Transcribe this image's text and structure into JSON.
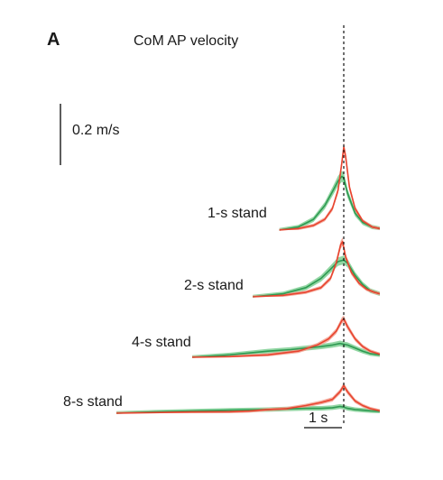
{
  "chart_data": {
    "type": "line",
    "panel_label": "A",
    "title": "CoM AP velocity",
    "units": "m/s",
    "scale_bars": {
      "velocity_label": "0.2 m/s",
      "velocity": 0.2,
      "time_label": "1 s",
      "time": 1
    },
    "colors": {
      "red": "#e8442f",
      "red_band": "#f2a08f",
      "green": "#2e9a52",
      "green_band": "#7fcf93"
    },
    "x_units": "s, relative to vertical dashed reference line",
    "conditions": [
      {
        "label": "1-s stand",
        "red": {
          "x": [
            -1.7,
            -1.2,
            -0.8,
            -0.5,
            -0.3,
            -0.15,
            -0.05,
            0,
            0.05,
            0.15,
            0.3,
            0.5,
            0.75,
            0.95
          ],
          "y": [
            0,
            0.005,
            0.015,
            0.035,
            0.07,
            0.13,
            0.22,
            0.27,
            0.24,
            0.14,
            0.07,
            0.03,
            0.01,
            0.005
          ]
        },
        "green": {
          "x": [
            -1.7,
            -1.2,
            -0.8,
            -0.5,
            -0.3,
            -0.15,
            -0.05,
            0,
            0.1,
            0.3,
            0.5,
            0.75,
            0.95
          ],
          "y": [
            0,
            0.01,
            0.035,
            0.08,
            0.125,
            0.16,
            0.175,
            0.17,
            0.12,
            0.055,
            0.025,
            0.01,
            0.005
          ]
        }
      },
      {
        "label": "2-s stand",
        "red": {
          "x": [
            -2.4,
            -1.6,
            -1.0,
            -0.6,
            -0.35,
            -0.2,
            -0.08,
            -0.03,
            0.05,
            0.2,
            0.4,
            0.6,
            0.8,
            0.95
          ],
          "y": [
            0,
            0.005,
            0.015,
            0.03,
            0.06,
            0.11,
            0.17,
            0.18,
            0.13,
            0.08,
            0.045,
            0.025,
            0.015,
            0.01
          ]
        },
        "green": {
          "x": [
            -2.4,
            -1.6,
            -1.0,
            -0.6,
            -0.35,
            -0.15,
            0,
            0.1,
            0.3,
            0.5,
            0.7,
            0.95
          ],
          "y": [
            0,
            0.01,
            0.03,
            0.06,
            0.09,
            0.115,
            0.12,
            0.11,
            0.07,
            0.04,
            0.02,
            0.01
          ]
        }
      },
      {
        "label": "4-s stand",
        "red": {
          "x": [
            -4.0,
            -3.0,
            -2.0,
            -1.2,
            -0.7,
            -0.4,
            -0.2,
            -0.05,
            0,
            0.1,
            0.3,
            0.5,
            0.7,
            0.95
          ],
          "y": [
            0,
            0.002,
            0.008,
            0.02,
            0.04,
            0.06,
            0.085,
            0.12,
            0.125,
            0.1,
            0.06,
            0.035,
            0.02,
            0.01
          ]
        },
        "green": {
          "x": [
            -4.0,
            -3.0,
            -2.0,
            -1.4,
            -1.0,
            -0.6,
            -0.3,
            -0.1,
            0.1,
            0.3,
            0.5,
            0.7,
            0.95
          ],
          "y": [
            0,
            0.008,
            0.02,
            0.025,
            0.03,
            0.035,
            0.04,
            0.045,
            0.04,
            0.03,
            0.02,
            0.012,
            0.008
          ]
        }
      },
      {
        "label": "8-s stand",
        "red": {
          "x": [
            -6.0,
            -5.0,
            -4.0,
            -3.0,
            -2.5,
            -2.0,
            -1.5,
            -1.0,
            -0.6,
            -0.3,
            -0.1,
            0,
            0.1,
            0.3,
            0.5,
            0.7,
            0.95
          ],
          "y": [
            0,
            0.002,
            0.004,
            0.005,
            0.007,
            0.012,
            0.015,
            0.025,
            0.035,
            0.045,
            0.07,
            0.09,
            0.07,
            0.04,
            0.025,
            0.015,
            0.008
          ]
        },
        "green": {
          "x": [
            -6.0,
            -5.0,
            -4.0,
            -3.0,
            -2.0,
            -1.5,
            -1.0,
            -0.6,
            -0.3,
            -0.1,
            0,
            0.1,
            0.3,
            0.5,
            0.7,
            0.95
          ],
          "y": [
            0,
            0.004,
            0.007,
            0.01,
            0.012,
            0.014,
            0.016,
            0.016,
            0.018,
            0.022,
            0.02,
            0.016,
            0.012,
            0.01,
            0.008,
            0.006
          ]
        }
      }
    ]
  }
}
